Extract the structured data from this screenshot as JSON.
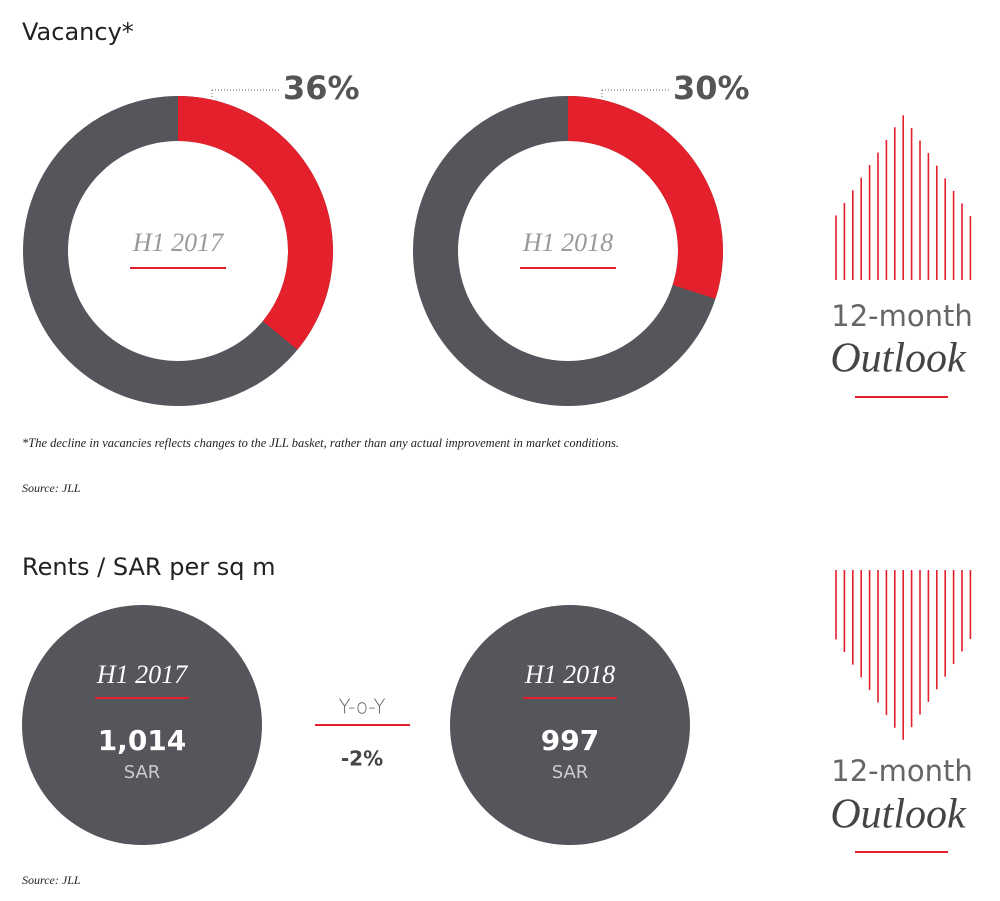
{
  "vacancy": {
    "title": "Vacancy*",
    "footnote": "*The decline in vacancies reflects changes to the JLL basket, rather than any actual improvement in market conditions.",
    "source": "Source: JLL"
  },
  "chart_data": [
    {
      "type": "donut",
      "title": "H1 2017",
      "values": [
        36
      ],
      "value_labels": [
        "36%"
      ],
      "color": "#e3202b",
      "track_color": "#54565b"
    },
    {
      "type": "donut",
      "title": "H1 2018",
      "values": [
        30
      ],
      "value_labels": [
        "30%"
      ],
      "color": "#e3202b",
      "track_color": "#54565b"
    }
  ],
  "rents": {
    "title": "Rents / SAR per sq m",
    "items": [
      {
        "period": "H1 2017",
        "value": "1,014",
        "unit": "SAR"
      },
      {
        "period": "H1 2018",
        "value": "997",
        "unit": "SAR"
      }
    ],
    "change_label": "Y-o-Y",
    "change": "-2%",
    "source": "Source: JLL"
  },
  "outlook": [
    {
      "line1": "12-month",
      "line2": "Outlook"
    },
    {
      "line1": "12-month",
      "line2": "Outlook"
    }
  ]
}
